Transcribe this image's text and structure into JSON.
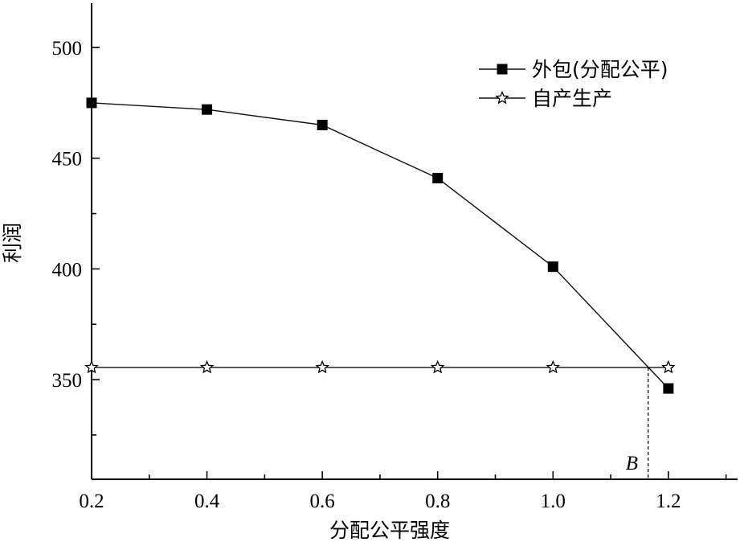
{
  "chart_data": {
    "type": "line",
    "xlabel": "分配公平强度",
    "ylabel": "利润",
    "xlim": [
      0.2,
      1.32
    ],
    "ylim": [
      305,
      520
    ],
    "xticks": [
      {
        "value": 0.2,
        "label": "0.2"
      },
      {
        "value": 0.4,
        "label": "0.4"
      },
      {
        "value": 0.6,
        "label": "0.6"
      },
      {
        "value": 0.8,
        "label": "0.8"
      },
      {
        "value": 1.0,
        "label": "1.0"
      },
      {
        "value": 1.2,
        "label": "1.2"
      }
    ],
    "yticks": [
      {
        "value": 350,
        "label": "350"
      },
      {
        "value": 400,
        "label": "400"
      },
      {
        "value": 450,
        "label": "450"
      },
      {
        "value": 500,
        "label": "500"
      }
    ],
    "legend_position": "top-right",
    "series": [
      {
        "name": "外包(分配公平)",
        "marker": "square",
        "x": [
          0.2,
          0.4,
          0.6,
          0.8,
          1.0,
          1.2
        ],
        "values": [
          475,
          472,
          465,
          441,
          401,
          346
        ]
      },
      {
        "name": "自产生产",
        "marker": "star",
        "x": [
          0.2,
          0.4,
          0.6,
          0.8,
          1.0,
          1.2
        ],
        "values": [
          355.5,
          355.5,
          355.5,
          355.5,
          355.5,
          355.5
        ]
      }
    ],
    "annotations": [
      {
        "label": "B",
        "x": 1.165,
        "y": 355.5,
        "style": "dashed-vertical-drop"
      }
    ]
  }
}
